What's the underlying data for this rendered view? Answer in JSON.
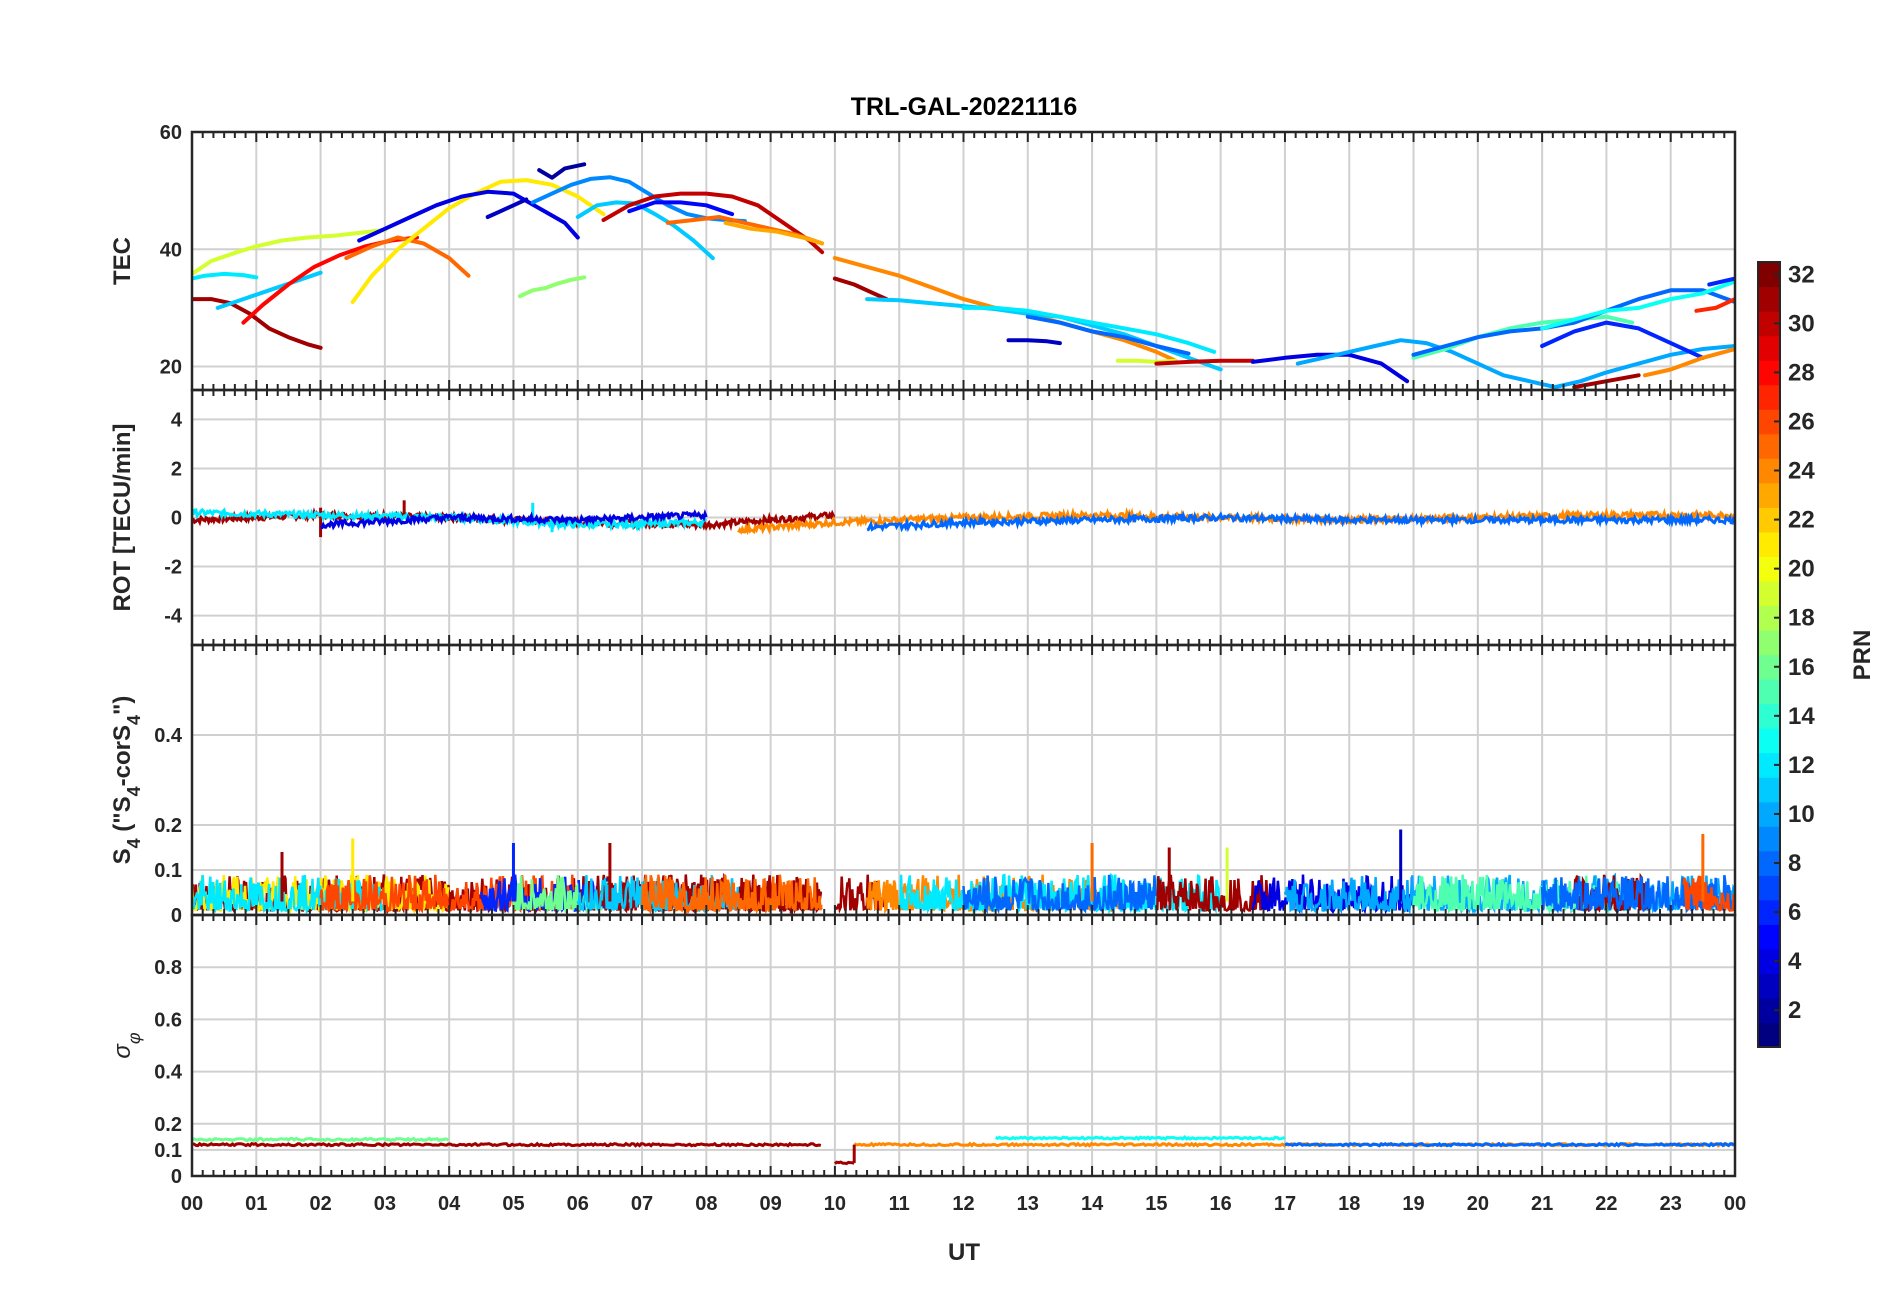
{
  "chart_data": {
    "type": "line",
    "title": "TRL-GAL-20221116",
    "xlabel": "UT",
    "x_tick_labels": [
      "00",
      "01",
      "02",
      "03",
      "04",
      "05",
      "06",
      "07",
      "08",
      "09",
      "10",
      "11",
      "12",
      "13",
      "14",
      "15",
      "16",
      "17",
      "18",
      "19",
      "20",
      "21",
      "22",
      "23",
      "00"
    ],
    "xlim": [
      0,
      24
    ],
    "grid": true,
    "colorbar": {
      "label": "PRN",
      "range": [
        1,
        32
      ],
      "ticks": [
        "2",
        "4",
        "6",
        "8",
        "10",
        "12",
        "14",
        "16",
        "18",
        "20",
        "22",
        "24",
        "26",
        "28",
        "30",
        "32"
      ],
      "colormap": "jet",
      "placement": "right"
    },
    "panels": [
      {
        "id": "tec",
        "ylabel": "TEC",
        "ylim": [
          16,
          60
        ],
        "yticks": [
          "20",
          "40",
          "60"
        ],
        "series": [
          {
            "prn": 31,
            "x": [
              0.0,
              0.3,
              0.6,
              0.9,
              1.2,
              1.5,
              1.8,
              2.0
            ],
            "y": [
              31.5,
              31.5,
              30.8,
              29,
              26.5,
              25,
              23.8,
              23.2
            ]
          },
          {
            "prn": 12,
            "x": [
              0.0,
              0.2,
              0.5,
              0.8,
              1.0
            ],
            "y": [
              35,
              35.5,
              35.8,
              35.6,
              35.2
            ]
          },
          {
            "prn": 19,
            "x": [
              0.0,
              0.3,
              0.7,
              1.0,
              1.4,
              1.8,
              2.2,
              2.6,
              3.0
            ],
            "y": [
              35.8,
              38,
              39.5,
              40.5,
              41.5,
              42,
              42.3,
              42.8,
              43.3
            ]
          },
          {
            "prn": 11,
            "x": [
              0.4,
              0.8,
              1.2,
              1.6,
              2.0
            ],
            "y": [
              30,
              31.5,
              33,
              34.5,
              36
            ]
          },
          {
            "prn": 28,
            "x": [
              0.8,
              1.1,
              1.5,
              1.9,
              2.3,
              2.7,
              3.1,
              3.5
            ],
            "y": [
              27.5,
              30.5,
              34,
              37,
              39,
              40.5,
              41.5,
              42
            ]
          },
          {
            "prn": 25,
            "x": [
              2.4,
              2.8,
              3.2,
              3.6,
              4.0,
              4.3
            ],
            "y": [
              38.5,
              40.5,
              42,
              41,
              38.5,
              35.5
            ]
          },
          {
            "prn": 21,
            "x": [
              2.5,
              2.8,
              3.2,
              3.6,
              4.0,
              4.4,
              4.8,
              5.2,
              5.6,
              6.0,
              6.4
            ],
            "y": [
              31,
              35.5,
              40,
              43.5,
              47,
              49.5,
              51.5,
              51.8,
              51,
              49,
              46
            ]
          },
          {
            "prn": 4,
            "x": [
              2.6,
              3.0,
              3.4,
              3.8,
              4.2,
              4.6,
              5.0,
              5.4,
              5.8,
              6.0
            ],
            "y": [
              41.5,
              43.5,
              45.5,
              47.5,
              49,
              49.8,
              49.5,
              47,
              44.5,
              42
            ]
          },
          {
            "prn": 17,
            "x": [
              5.1,
              5.3,
              5.5,
              5.7,
              5.9,
              6.1
            ],
            "y": [
              32,
              33,
              33.4,
              34.2,
              34.8,
              35.2
            ]
          },
          {
            "prn": 3,
            "x": [
              4.6,
              4.8,
              5.0,
              5.2
            ],
            "y": [
              45.5,
              46.5,
              47.5,
              48.5
            ]
          },
          {
            "prn": 2,
            "x": [
              5.4,
              5.6,
              5.8,
              6.1
            ],
            "y": [
              53.5,
              52.2,
              53.8,
              54.5
            ]
          },
          {
            "prn": 9,
            "x": [
              5.3,
              5.6,
              5.9,
              6.2,
              6.5,
              6.8,
              7.1,
              7.4,
              7.7,
              8.0,
              8.3,
              8.6
            ],
            "y": [
              48,
              49.5,
              51,
              52,
              52.3,
              51.5,
              49.5,
              47.5,
              46,
              45.3,
              45,
              44.8
            ]
          },
          {
            "prn": 11,
            "x": [
              6.0,
              6.3,
              6.6,
              6.9,
              7.2,
              7.5,
              7.8,
              8.1
            ],
            "y": [
              45.5,
              47.5,
              48,
              47.8,
              46,
              44,
              41.5,
              38.5
            ]
          },
          {
            "prn": 30,
            "x": [
              6.4,
              6.8,
              7.2,
              7.6,
              8.0,
              8.4,
              8.8,
              9.2,
              9.6,
              9.8
            ],
            "y": [
              45,
              47.5,
              49,
              49.5,
              49.5,
              49,
              47.5,
              44.5,
              41.5,
              39.5
            ]
          },
          {
            "prn": 5,
            "x": [
              6.8,
              7.2,
              7.6,
              8.0,
              8.4
            ],
            "y": [
              46.5,
              48,
              48,
              47.5,
              46
            ]
          },
          {
            "prn": 25,
            "x": [
              7.4,
              7.8,
              8.2,
              8.6,
              9.0,
              9.4,
              9.8
            ],
            "y": [
              44.5,
              45,
              45.5,
              44.5,
              43.5,
              42.5,
              41
            ]
          },
          {
            "prn": 23,
            "x": [
              8.3,
              8.7,
              9.1,
              9.5,
              9.8
            ],
            "y": [
              44.5,
              43.5,
              43,
              42,
              41
            ]
          },
          {
            "prn": 24,
            "x": [
              10.0,
              10.5,
              11.0,
              11.5,
              12.0,
              12.5,
              13.0,
              13.5,
              14.0,
              14.5,
              15.0,
              15.3
            ],
            "y": [
              38.5,
              37,
              35.5,
              33.5,
              31.5,
              30,
              29,
              27.5,
              26,
              24.5,
              22.5,
              21
            ]
          },
          {
            "prn": 31,
            "x": [
              10.0,
              10.3,
              10.6,
              10.8
            ],
            "y": [
              35,
              34,
              32.5,
              31.5
            ]
          },
          {
            "prn": 11,
            "x": [
              10.5,
              11.0,
              11.5,
              12.0,
              12.5,
              13.0,
              13.5,
              14.0,
              14.5,
              15.0,
              15.5,
              16.0
            ],
            "y": [
              31.5,
              31.3,
              30.8,
              30.3,
              29.8,
              29,
              28.5,
              27,
              25.5,
              23.5,
              21.5,
              19.5
            ]
          },
          {
            "prn": 12,
            "x": [
              12.0,
              12.5,
              13.0,
              13.5,
              14.0,
              14.5,
              15.0,
              15.5,
              15.9
            ],
            "y": [
              30,
              30,
              29.5,
              28.5,
              27.5,
              26.5,
              25.5,
              24,
              22.5
            ]
          },
          {
            "prn": 8,
            "x": [
              13.0,
              13.5,
              14.0,
              14.5,
              15.0,
              15.5
            ],
            "y": [
              28.5,
              27.5,
              26,
              25,
              23.5,
              22.2
            ]
          },
          {
            "prn": 3,
            "x": [
              12.7,
              13.0,
              13.3,
              13.5
            ],
            "y": [
              24.5,
              24.5,
              24.3,
              24
            ]
          },
          {
            "prn": 19,
            "x": [
              14.4,
              14.7,
              15.0,
              15.3
            ],
            "y": [
              21,
              21,
              20.8,
              21
            ]
          },
          {
            "prn": 30,
            "x": [
              15.0,
              15.5,
              16.0,
              16.5
            ],
            "y": [
              20.5,
              20.8,
              21,
              21
            ]
          },
          {
            "prn": 4,
            "x": [
              16.5,
              17.0,
              17.5,
              18.0,
              18.5,
              18.9
            ],
            "y": [
              20.8,
              21.5,
              22,
              22,
              20.5,
              17.5
            ]
          },
          {
            "prn": 10,
            "x": [
              17.2,
              17.6,
              18.0,
              18.4,
              18.8,
              19.2,
              19.6,
              20.0,
              20.4,
              20.8,
              21.2,
              21.6,
              22.0,
              22.5,
              23.0,
              23.5,
              24.0
            ],
            "y": [
              20.5,
              21.5,
              22.5,
              23.5,
              24.5,
              24,
              22.5,
              20.5,
              18.5,
              17.5,
              16.5,
              17.5,
              19,
              20.5,
              22,
              23,
              23.5
            ]
          },
          {
            "prn": 15,
            "x": [
              19.0,
              19.5,
              20.0,
              20.5,
              21.0,
              21.5,
              22.0,
              22.4
            ],
            "y": [
              21.5,
              23,
              25,
              26.5,
              27.5,
              28,
              28.5,
              27.5
            ]
          },
          {
            "prn": 8,
            "x": [
              19.0,
              19.5,
              20.0,
              20.5,
              21.0,
              21.5,
              22.0,
              22.5,
              23.0,
              23.5,
              24.0
            ],
            "y": [
              22,
              23.5,
              25,
              26,
              26.5,
              27.5,
              29.5,
              31.5,
              33,
              33,
              31
            ]
          },
          {
            "prn": 6,
            "x": [
              21.0,
              21.5,
              22.0,
              22.5,
              23.0,
              23.5
            ],
            "y": [
              23.5,
              26,
              27.5,
              26.5,
              24,
              21.5
            ]
          },
          {
            "prn": 13,
            "x": [
              21.0,
              21.5,
              22.0,
              22.5,
              23.0,
              23.5,
              24.0
            ],
            "y": [
              26.5,
              28,
              29.5,
              30,
              31.5,
              32.5,
              34.5
            ]
          },
          {
            "prn": 31,
            "x": [
              21.5,
              22.0,
              22.5
            ],
            "y": [
              16.5,
              17.5,
              18.5
            ]
          },
          {
            "prn": 24,
            "x": [
              22.6,
              23.0,
              23.5,
              24.0
            ],
            "y": [
              18.5,
              19.5,
              21.5,
              23
            ]
          },
          {
            "prn": 27,
            "x": [
              23.4,
              23.7,
              24.0
            ],
            "y": [
              29.5,
              30,
              31.5
            ]
          },
          {
            "prn": 6,
            "x": [
              23.6,
              24.0
            ],
            "y": [
              34,
              35
            ]
          }
        ]
      },
      {
        "id": "rot",
        "ylabel": "ROT [TECU/min]",
        "ylim": [
          -5.2,
          5.2
        ],
        "yticks": [
          "-4",
          "-2",
          "0",
          "2",
          "4"
        ],
        "series": [
          {
            "prn": 31,
            "x": [
              0,
              2,
              4,
              6,
              8,
              10
            ],
            "y": [
              -0.1,
              0.1,
              0,
              -0.2,
              -0.3,
              0.1
            ],
            "spikes": [
              [
                2.0,
                -0.8
              ],
              [
                2.0,
                0.4
              ],
              [
                3.3,
                0.7
              ]
            ]
          },
          {
            "prn": 12,
            "x": [
              0,
              2,
              4,
              6,
              8
            ],
            "y": [
              0.2,
              0.1,
              0,
              -0.3,
              -0.2
            ],
            "spikes": [
              [
                5.3,
                0.6
              ],
              [
                5.6,
                -0.6
              ]
            ]
          },
          {
            "prn": 24,
            "x": [
              8.5,
              10,
              12,
              14,
              16,
              18,
              20,
              22,
              24
            ],
            "y": [
              -0.5,
              -0.2,
              0,
              0.1,
              0,
              -0.1,
              0,
              0.1,
              0.1
            ]
          },
          {
            "prn": 8,
            "x": [
              10.5,
              12,
              14,
              16,
              18,
              20,
              22,
              24
            ],
            "y": [
              -0.4,
              -0.2,
              -0.1,
              0,
              -0.1,
              -0.1,
              -0.1,
              -0.1
            ]
          },
          {
            "prn": 4,
            "x": [
              2,
              4,
              6,
              8
            ],
            "y": [
              -0.3,
              0,
              -0.1,
              0.1
            ]
          }
        ]
      },
      {
        "id": "s4",
        "ylabel": "S4 (\"S4-corS4\")",
        "ylim": [
          0,
          0.6
        ],
        "yticks": [
          "0",
          "0.1",
          "0.2",
          "0.4"
        ],
        "baseline_range": [
          0.01,
          0.1
        ],
        "spikes": [
          {
            "prn": 31,
            "x": 1.4,
            "y": 0.14
          },
          {
            "prn": 21,
            "x": 2.5,
            "y": 0.17
          },
          {
            "prn": 6,
            "x": 5.0,
            "y": 0.16
          },
          {
            "prn": 31,
            "x": 6.5,
            "y": 0.16
          },
          {
            "prn": 25,
            "x": 14.0,
            "y": 0.16
          },
          {
            "prn": 31,
            "x": 15.2,
            "y": 0.15
          },
          {
            "prn": 19,
            "x": 16.1,
            "y": 0.15
          },
          {
            "prn": 3,
            "x": 18.8,
            "y": 0.19
          },
          {
            "prn": 25,
            "x": 23.5,
            "y": 0.18
          }
        ]
      },
      {
        "id": "sigma_phi",
        "ylabel": "σφ",
        "ylim": [
          0,
          1
        ],
        "yticks": [
          "0",
          "0.1",
          "0.2",
          "0.4",
          "0.6",
          "0.8"
        ],
        "levels": [
          {
            "prn": 31,
            "x": [
              0,
              9.8
            ],
            "y": 0.12
          },
          {
            "prn": 16,
            "x": [
              0,
              4
            ],
            "y": 0.14
          },
          {
            "prn": 31,
            "x": [
              10.0,
              10.3
            ],
            "y": 0.05
          },
          {
            "prn": 24,
            "x": [
              10.3,
              24
            ],
            "y": 0.12
          },
          {
            "prn": 13,
            "x": [
              12.5,
              17
            ],
            "y": 0.145
          },
          {
            "prn": 8,
            "x": [
              17,
              24
            ],
            "y": 0.12
          }
        ]
      }
    ]
  }
}
